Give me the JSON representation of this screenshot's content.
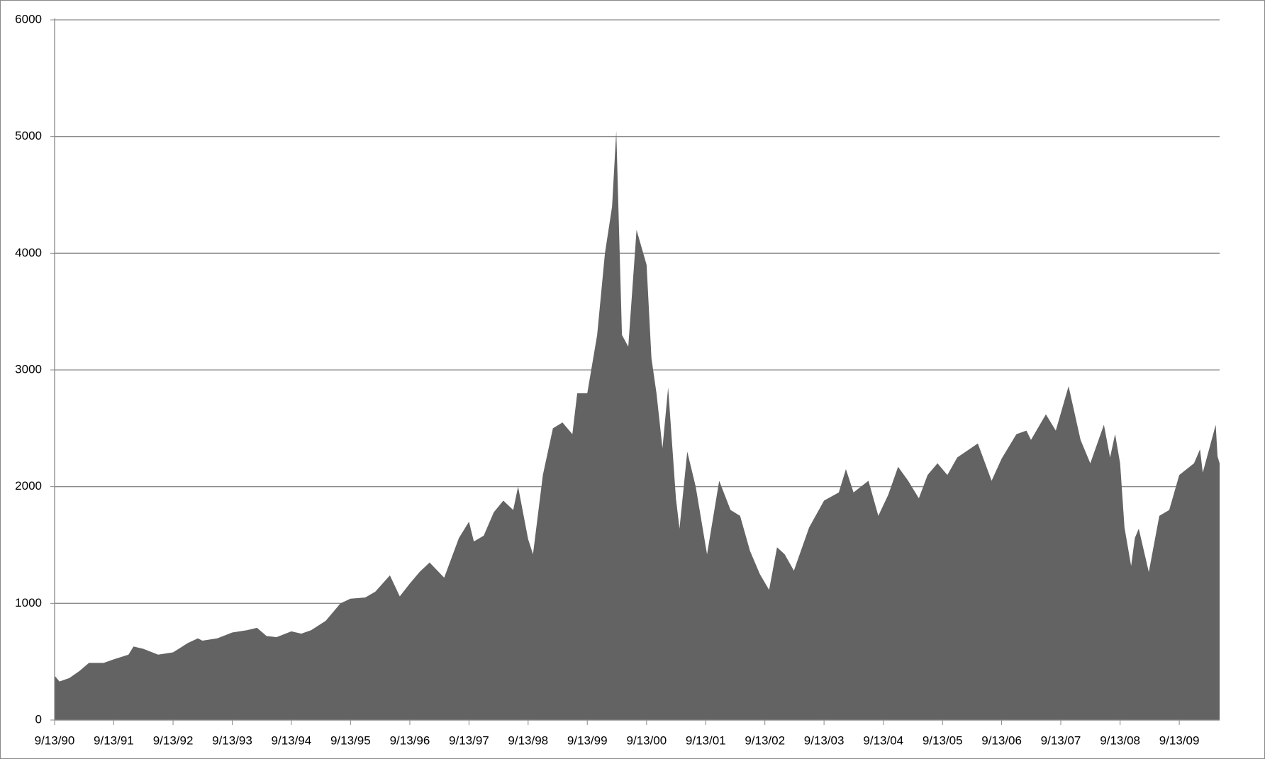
{
  "chart_data": {
    "type": "area",
    "x": [
      "1990-09-13",
      "1990-10-13",
      "1990-12-13",
      "1991-02-13",
      "1991-04-13",
      "1991-07-13",
      "1991-09-13",
      "1991-12-13",
      "1992-01-13",
      "1992-03-13",
      "1992-06-13",
      "1992-09-13",
      "1992-12-13",
      "1993-02-13",
      "1993-03-13",
      "1993-06-13",
      "1993-09-13",
      "1993-12-13",
      "1994-02-13",
      "1994-04-13",
      "1994-06-13",
      "1994-09-13",
      "1994-11-13",
      "1995-01-13",
      "1995-04-13",
      "1995-07-13",
      "1995-09-13",
      "1995-12-13",
      "1996-02-13",
      "1996-05-13",
      "1996-07-13",
      "1996-09-13",
      "1996-11-13",
      "1997-01-13",
      "1997-04-13",
      "1997-07-13",
      "1997-09-13",
      "1997-10-13",
      "1997-12-13",
      "1998-02-13",
      "1998-04-13",
      "1998-06-13",
      "1998-07-13",
      "1998-09-13",
      "1998-10-13",
      "1998-12-13",
      "1999-02-13",
      "1999-04-13",
      "1999-06-13",
      "1999-07-13",
      "1999-09-13",
      "1999-11-13",
      "1999-12-31",
      "2000-02-13",
      "2000-03-10",
      "2000-04-14",
      "2000-05-23",
      "2000-07-13",
      "2000-09-13",
      "2000-10-13",
      "2000-11-13",
      "2000-12-20",
      "2001-01-24",
      "2001-03-13",
      "2001-04-04",
      "2001-05-22",
      "2001-07-13",
      "2001-09-21",
      "2001-12-05",
      "2002-02-13",
      "2002-04-13",
      "2002-06-13",
      "2002-08-13",
      "2002-10-09",
      "2002-11-27",
      "2003-01-13",
      "2003-03-11",
      "2003-06-13",
      "2003-09-13",
      "2003-12-13",
      "2004-01-26",
      "2004-03-13",
      "2004-06-13",
      "2004-08-13",
      "2004-10-13",
      "2004-12-13",
      "2005-02-13",
      "2005-04-20",
      "2005-06-13",
      "2005-08-13",
      "2005-10-13",
      "2005-12-13",
      "2006-04-19",
      "2006-07-13",
      "2006-09-13",
      "2006-12-13",
      "2007-02-13",
      "2007-03-13",
      "2007-06-13",
      "2007-08-13",
      "2007-10-31",
      "2008-01-13",
      "2008-03-13",
      "2008-06-05",
      "2008-07-13",
      "2008-08-13",
      "2008-09-13",
      "2008-10-10",
      "2008-11-20",
      "2008-12-13",
      "2009-01-06",
      "2009-03-09",
      "2009-05-13",
      "2009-07-13",
      "2009-09-13",
      "2009-12-13",
      "2010-01-19",
      "2010-02-05",
      "2010-04-26",
      "2010-05-07",
      "2010-05-20"
    ],
    "values": [
      380,
      330,
      360,
      420,
      490,
      490,
      520,
      560,
      630,
      610,
      560,
      580,
      660,
      700,
      680,
      700,
      750,
      770,
      790,
      720,
      710,
      760,
      740,
      770,
      850,
      1000,
      1040,
      1050,
      1100,
      1240,
      1060,
      1170,
      1270,
      1350,
      1220,
      1560,
      1700,
      1530,
      1580,
      1780,
      1880,
      1800,
      2000,
      1550,
      1420,
      2100,
      2500,
      2550,
      2450,
      2800,
      2800,
      3300,
      4000,
      4400,
      5048,
      3300,
      3200,
      4200,
      3900,
      3100,
      2800,
      2330,
      2850,
      1900,
      1640,
      2300,
      2000,
      1420,
      2050,
      1800,
      1750,
      1450,
      1250,
      1115,
      1480,
      1420,
      1280,
      1650,
      1880,
      1950,
      2150,
      1950,
      2050,
      1750,
      1930,
      2170,
      2050,
      1900,
      2100,
      2200,
      2100,
      2250,
      2370,
      2050,
      2240,
      2450,
      2480,
      2400,
      2620,
      2480,
      2860,
      2400,
      2200,
      2530,
      2250,
      2450,
      2200,
      1650,
      1320,
      1560,
      1640,
      1268,
      1750,
      1800,
      2100,
      2200,
      2320,
      2120,
      2530,
      2260,
      2200
    ],
    "color": "#636363",
    "xlim": [
      "1990-09-13",
      "2010-05-20"
    ],
    "xticks": [
      {
        "value": "1990-09-13",
        "label": "9/13/90"
      },
      {
        "value": "1991-09-13",
        "label": "9/13/91"
      },
      {
        "value": "1992-09-13",
        "label": "9/13/92"
      },
      {
        "value": "1993-09-13",
        "label": "9/13/93"
      },
      {
        "value": "1994-09-13",
        "label": "9/13/94"
      },
      {
        "value": "1995-09-13",
        "label": "9/13/95"
      },
      {
        "value": "1996-09-13",
        "label": "9/13/96"
      },
      {
        "value": "1997-09-13",
        "label": "9/13/97"
      },
      {
        "value": "1998-09-13",
        "label": "9/13/98"
      },
      {
        "value": "1999-09-13",
        "label": "9/13/99"
      },
      {
        "value": "2000-09-13",
        "label": "9/13/00"
      },
      {
        "value": "2001-09-13",
        "label": "9/13/01"
      },
      {
        "value": "2002-09-13",
        "label": "9/13/02"
      },
      {
        "value": "2003-09-13",
        "label": "9/13/03"
      },
      {
        "value": "2004-09-13",
        "label": "9/13/04"
      },
      {
        "value": "2005-09-13",
        "label": "9/13/05"
      },
      {
        "value": "2006-09-13",
        "label": "9/13/06"
      },
      {
        "value": "2007-09-13",
        "label": "9/13/07"
      },
      {
        "value": "2008-09-13",
        "label": "9/13/08"
      },
      {
        "value": "2009-09-13",
        "label": "9/13/09"
      }
    ],
    "ylim": [
      0,
      6000
    ],
    "yticks": [
      0,
      1000,
      2000,
      3000,
      4000,
      5000,
      6000
    ],
    "grid": true
  }
}
